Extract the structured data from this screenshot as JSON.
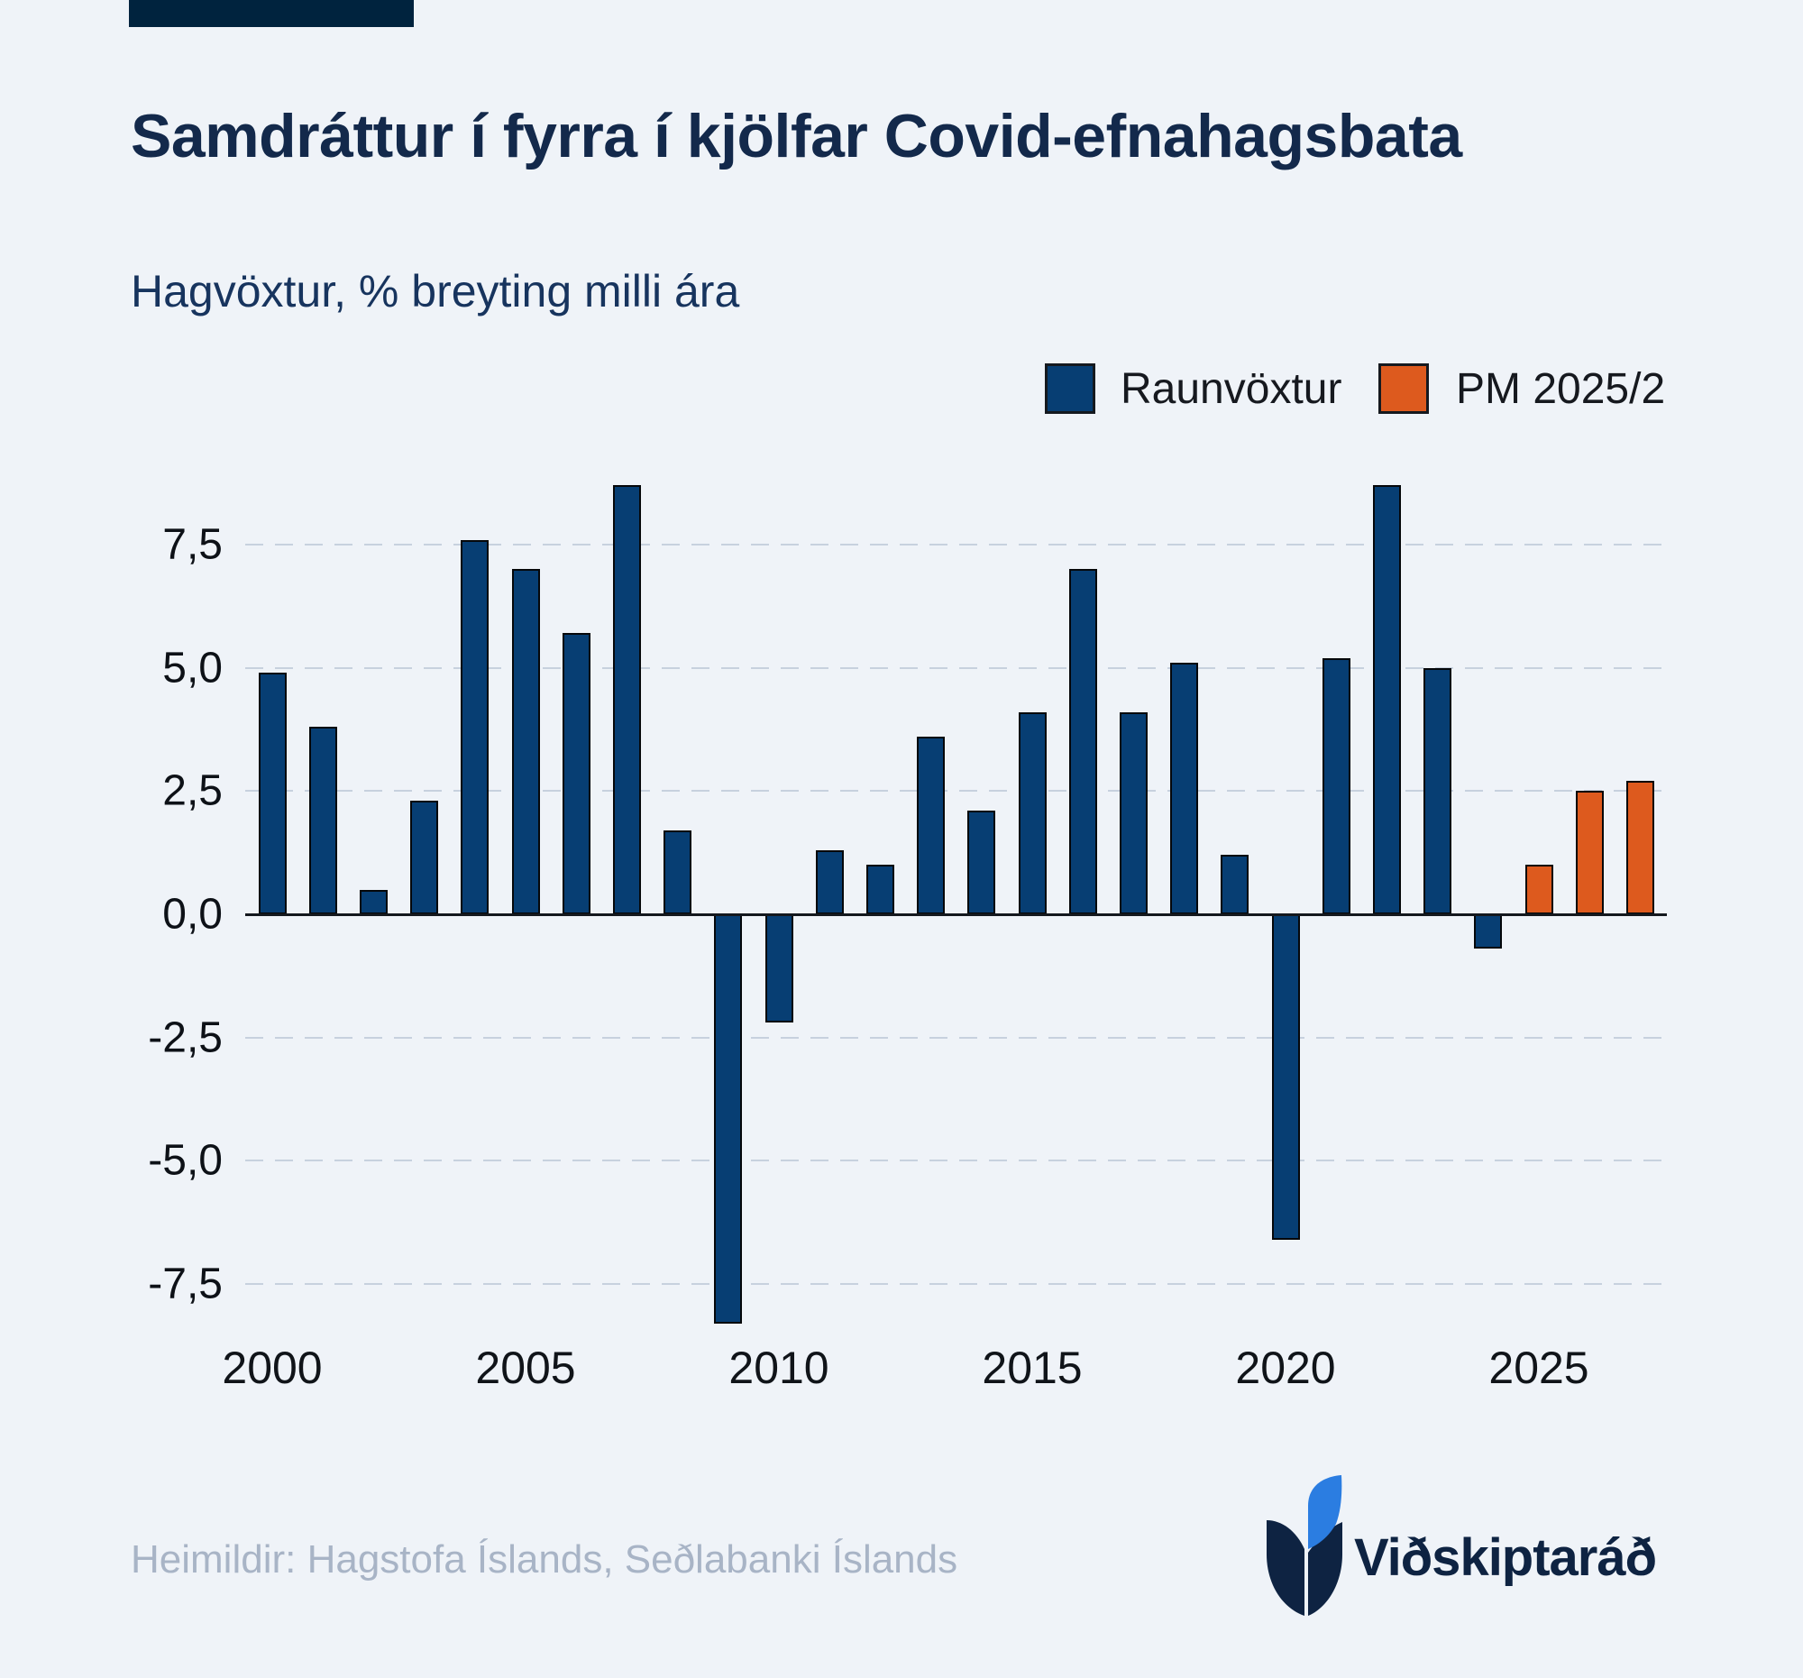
{
  "page": {
    "background_color": "#eff3f8",
    "accent_color": "#00233e"
  },
  "header": {
    "title": "Samdráttur í fyrra í kjölfar Covid-efnahagsbata",
    "subtitle": "Hagvöxtur, % breyting milli ára"
  },
  "legend": {
    "items": [
      {
        "label": "Raunvöxtur",
        "color": "#073e73"
      },
      {
        "label": "PM 2025/2",
        "color": "#dd5a1e"
      }
    ]
  },
  "chart_data": {
    "type": "bar",
    "title": "Samdráttur í fyrra í kjölfar Covid-efnahagsbata",
    "subtitle": "Hagvöxtur, % breyting milli ára",
    "unit": "% change year-over-year",
    "grid": "horizontal dashed",
    "ylim": [
      -8.6,
      9.3
    ],
    "series": [
      {
        "name": "Raunvöxtur",
        "color": "#073e73",
        "values": [
          [
            2000,
            4.9
          ],
          [
            2001,
            3.8
          ],
          [
            2002,
            0.5
          ],
          [
            2003,
            2.3
          ],
          [
            2004,
            7.6
          ],
          [
            2005,
            7.0
          ],
          [
            2006,
            5.7
          ],
          [
            2007,
            8.7
          ],
          [
            2008,
            1.7
          ],
          [
            2009,
            -8.3
          ],
          [
            2010,
            -2.2
          ],
          [
            2011,
            1.3
          ],
          [
            2012,
            1.0
          ],
          [
            2013,
            3.6
          ],
          [
            2014,
            2.1
          ],
          [
            2015,
            4.1
          ],
          [
            2016,
            7.0
          ],
          [
            2017,
            4.1
          ],
          [
            2018,
            5.1
          ],
          [
            2019,
            1.2
          ],
          [
            2020,
            -6.6
          ],
          [
            2021,
            5.2
          ],
          [
            2022,
            8.7
          ],
          [
            2023,
            5.0
          ],
          [
            2024,
            -0.7
          ]
        ]
      },
      {
        "name": "PM 2025/2",
        "color": "#dd5a1e",
        "values": [
          [
            2025,
            1.0
          ],
          [
            2026,
            2.5
          ],
          [
            2027,
            2.7
          ]
        ]
      }
    ],
    "yticks": [
      {
        "value": 7.5,
        "label": "7,5"
      },
      {
        "value": 5.0,
        "label": "5,0"
      },
      {
        "value": 2.5,
        "label": "2,5"
      },
      {
        "value": 0.0,
        "label": "0,0"
      },
      {
        "value": -2.5,
        "label": "-2,5"
      },
      {
        "value": -5.0,
        "label": "-5,0"
      },
      {
        "value": -7.5,
        "label": "-7,5"
      }
    ],
    "xticks": [
      {
        "value": 2000,
        "label": "2000"
      },
      {
        "value": 2005,
        "label": "2005"
      },
      {
        "value": 2010,
        "label": "2010"
      },
      {
        "value": 2015,
        "label": "2015"
      },
      {
        "value": 2020,
        "label": "2020"
      },
      {
        "value": 2025,
        "label": "2025"
      }
    ]
  },
  "footer": {
    "sources": "Heimildir: Hagstofa Íslands, Seðlabanki Íslands"
  },
  "logo": {
    "text": "Viðskiptaráð",
    "icon": "book-leaf-logo",
    "dark_color": "#0e2342",
    "blue_color": "#2b7de1"
  }
}
